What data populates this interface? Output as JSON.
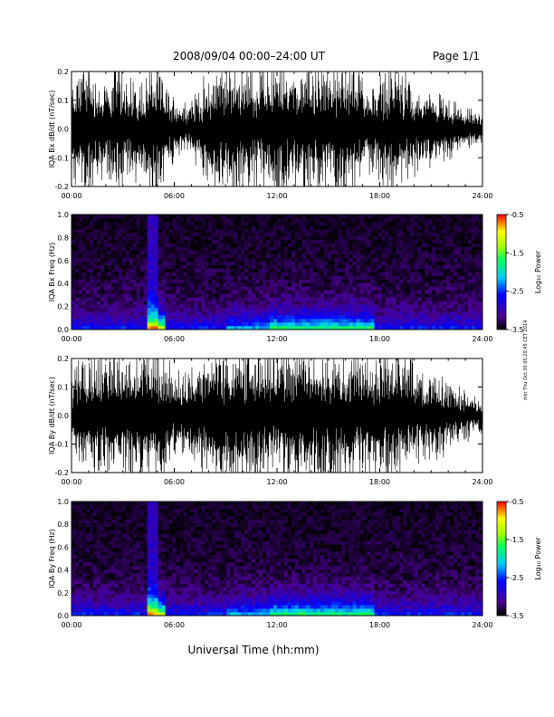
{
  "header": {
    "title": "2008/09/04  00:00–24:00 UT",
    "page": "Page 1/1"
  },
  "side_note": "mkr Thu Oct 30 05:20:45 CET 2014",
  "xlabel": "Universal Time (hh:mm)",
  "chart_data": [
    {
      "type": "line",
      "ylabel": "IQA Bx dB/dt (nT/sec)",
      "xlim": [
        0,
        24
      ],
      "ylim": [
        -0.2,
        0.2
      ],
      "xticks": [
        "00:00",
        "06:00",
        "12:00",
        "18:00",
        "24:00"
      ],
      "yticks": [
        "-0.2",
        "-0.1",
        "0.0",
        "0.1",
        "0.2"
      ],
      "series": [
        {
          "x_hours": [
            0,
            0.5,
            1,
            1.5,
            2,
            2.5,
            3,
            3.5,
            4,
            4.5,
            5,
            5.5,
            6,
            6.5,
            7,
            7.5,
            8,
            8.5,
            9,
            9.5,
            10,
            10.5,
            11,
            11.5,
            12,
            12.5,
            13,
            13.5,
            14,
            14.5,
            15,
            15.5,
            16,
            16.5,
            17,
            17.5,
            18,
            18.5,
            19,
            19.5,
            20,
            20.5,
            21,
            21.5,
            22,
            22.5,
            23,
            23.5,
            24
          ],
          "amplitude": [
            0.12,
            0.2,
            0.2,
            0.15,
            0.12,
            0.2,
            0.18,
            0.15,
            0.13,
            0.2,
            0.2,
            0.12,
            0.1,
            0.08,
            0.09,
            0.12,
            0.15,
            0.2,
            0.2,
            0.2,
            0.2,
            0.2,
            0.15,
            0.2,
            0.2,
            0.2,
            0.2,
            0.2,
            0.2,
            0.2,
            0.18,
            0.2,
            0.2,
            0.2,
            0.15,
            0.12,
            0.15,
            0.18,
            0.2,
            0.16,
            0.12,
            0.1,
            0.11,
            0.1,
            0.08,
            0.07,
            0.06,
            0.05,
            0.04
          ]
        }
      ]
    },
    {
      "type": "heatmap",
      "ylabel": "IQA Bx Freq (Hz)",
      "xlim": [
        0,
        24
      ],
      "ylim": [
        0,
        1.0
      ],
      "xticks": [
        "00:00",
        "06:00",
        "12:00",
        "18:00",
        "24:00"
      ],
      "yticks": [
        "0.0",
        "0.2",
        "0.4",
        "0.6",
        "0.8",
        "1.0"
      ],
      "colorbar": {
        "label": "Log₁₀ Power",
        "range": [
          -3.5,
          -0.5
        ],
        "ticks": [
          "-3.5",
          "-2.5",
          "-1.5",
          "-0.5"
        ]
      }
    },
    {
      "type": "line",
      "ylabel": "IQA By dB/dt (nT/sec)",
      "xlim": [
        0,
        24
      ],
      "ylim": [
        -0.2,
        0.2
      ],
      "xticks": [
        "00:00",
        "06:00",
        "12:00",
        "18:00",
        "24:00"
      ],
      "yticks": [
        "-0.2",
        "-0.1",
        "0.0",
        "0.1",
        "0.2"
      ],
      "series": [
        {
          "x_hours": [
            0,
            0.5,
            1,
            1.5,
            2,
            2.5,
            3,
            3.5,
            4,
            4.5,
            5,
            5.5,
            6,
            6.5,
            7,
            7.5,
            8,
            8.5,
            9,
            9.5,
            10,
            10.5,
            11,
            11.5,
            12,
            12.5,
            13,
            13.5,
            14,
            14.5,
            15,
            15.5,
            16,
            16.5,
            17,
            17.5,
            18,
            18.5,
            19,
            19.5,
            20,
            20.5,
            21,
            21.5,
            22,
            22.5,
            23,
            23.5,
            24
          ],
          "amplitude": [
            0.1,
            0.2,
            0.2,
            0.2,
            0.18,
            0.2,
            0.2,
            0.2,
            0.2,
            0.2,
            0.2,
            0.18,
            0.15,
            0.12,
            0.14,
            0.16,
            0.18,
            0.2,
            0.2,
            0.2,
            0.2,
            0.2,
            0.18,
            0.2,
            0.2,
            0.2,
            0.2,
            0.2,
            0.2,
            0.2,
            0.2,
            0.2,
            0.2,
            0.2,
            0.2,
            0.18,
            0.2,
            0.2,
            0.2,
            0.18,
            0.15,
            0.12,
            0.13,
            0.12,
            0.1,
            0.08,
            0.08,
            0.06,
            0.05
          ]
        }
      ]
    },
    {
      "type": "heatmap",
      "ylabel": "IQA By Freq (Hz)",
      "xlim": [
        0,
        24
      ],
      "ylim": [
        0,
        1.0
      ],
      "xticks": [
        "00:00",
        "06:00",
        "12:00",
        "18:00",
        "24:00"
      ],
      "yticks": [
        "0.0",
        "0.2",
        "0.4",
        "0.6",
        "0.8",
        "1.0"
      ],
      "colorbar": {
        "label": "Log₁₀ Power",
        "range": [
          -3.5,
          -0.5
        ],
        "ticks": [
          "-3.5",
          "-2.5",
          "-1.5",
          "-0.5"
        ]
      }
    }
  ]
}
